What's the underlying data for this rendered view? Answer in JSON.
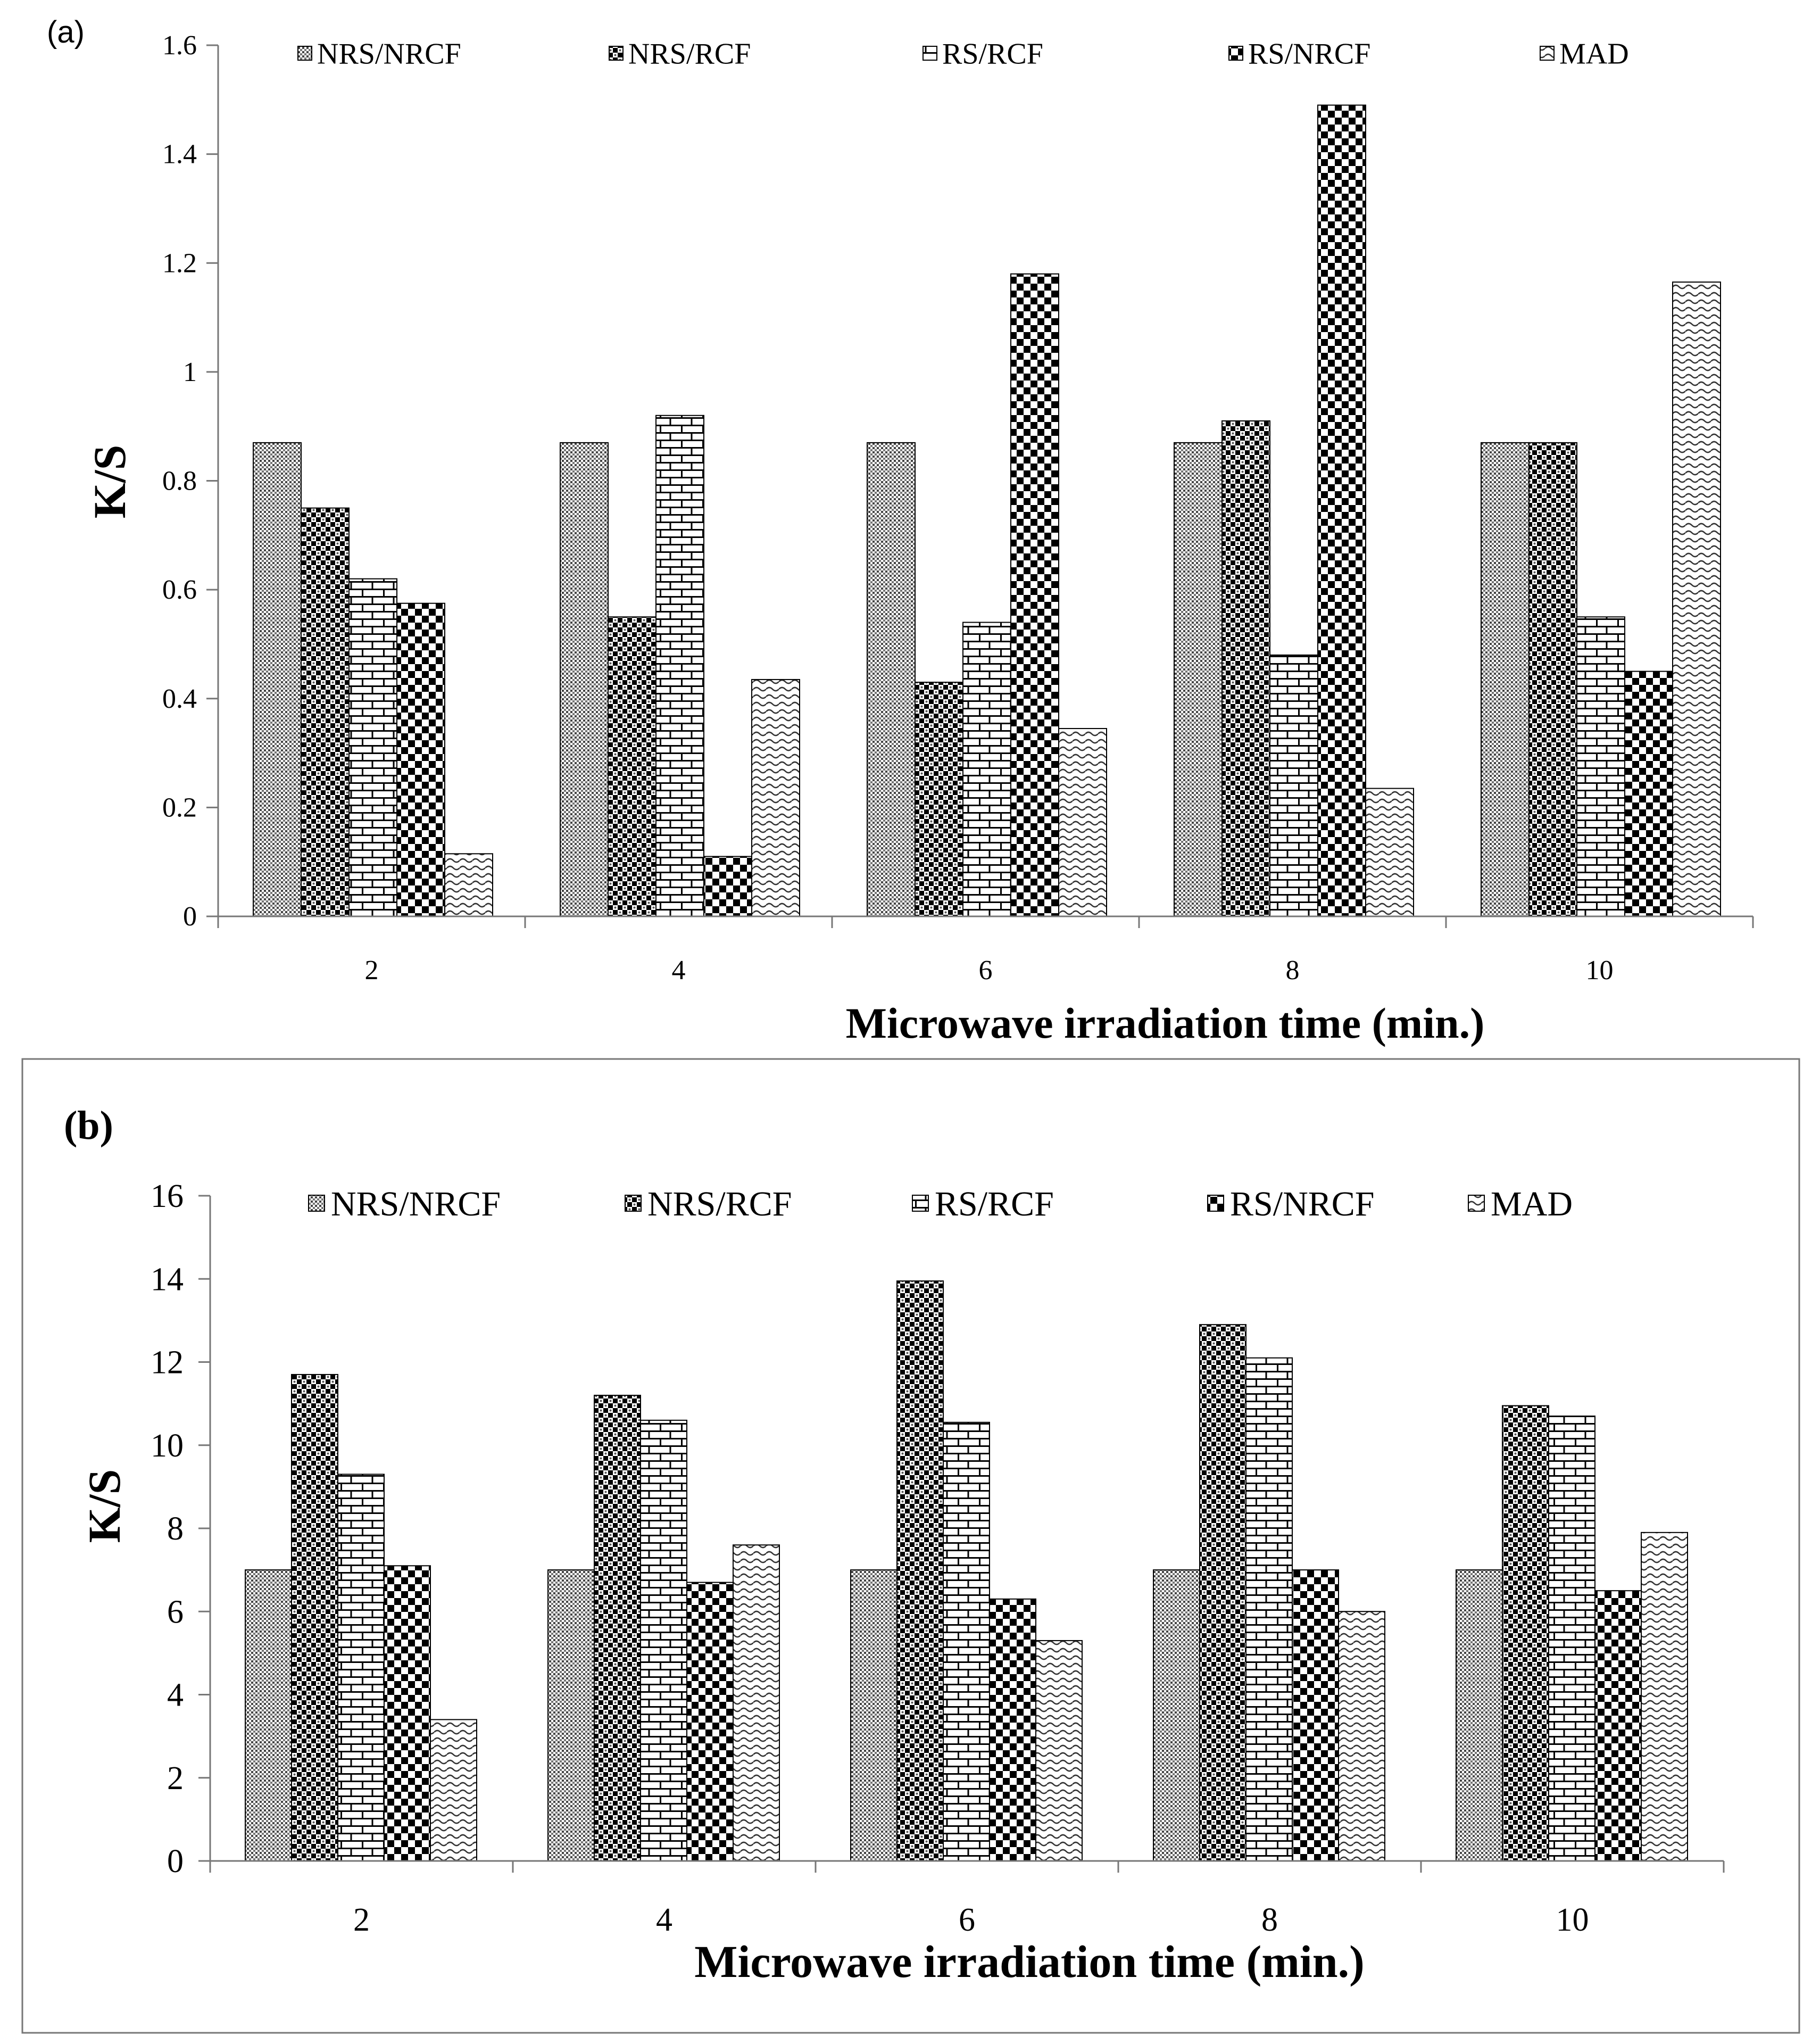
{
  "chart_data": [
    {
      "id": "a",
      "type": "bar",
      "panel_label": "(a)",
      "title": "",
      "xlabel": "Microwave irradiation  time (min.)",
      "ylabel": "K/S",
      "categories": [
        "2",
        "4",
        "6",
        "8",
        "10"
      ],
      "ylim": [
        0,
        1.6
      ],
      "yticks": [
        "0",
        "0.2",
        "0.4",
        "0.6",
        "0.8",
        "1",
        "1.2",
        "1.4",
        "1.6"
      ],
      "legend_position": "top",
      "grid": false,
      "series": [
        {
          "name": "NRS/NRCF",
          "values": [
            0.87,
            0.87,
            0.87,
            0.87,
            0.87
          ]
        },
        {
          "name": "NRS/RCF",
          "values": [
            0.75,
            0.55,
            0.43,
            0.91,
            0.87
          ]
        },
        {
          "name": "RS/RCF",
          "values": [
            0.62,
            0.92,
            0.54,
            0.48,
            0.55
          ]
        },
        {
          "name": "RS/NRCF",
          "values": [
            0.575,
            0.11,
            1.18,
            1.49,
            0.45
          ]
        },
        {
          "name": "MAD",
          "values": [
            0.115,
            0.435,
            0.345,
            0.235,
            1.165
          ]
        }
      ]
    },
    {
      "id": "b",
      "type": "bar",
      "panel_label": "(b)",
      "title": "",
      "xlabel": "Microwave irradiation time (min.)",
      "ylabel": "K/S",
      "categories": [
        "2",
        "4",
        "6",
        "8",
        "10"
      ],
      "ylim": [
        0,
        16
      ],
      "yticks": [
        "0",
        "2",
        "4",
        "6",
        "8",
        "10",
        "12",
        "14",
        "16"
      ],
      "legend_position": "top",
      "grid": false,
      "series": [
        {
          "name": "NRS/NRCF",
          "values": [
            7.0,
            7.0,
            7.0,
            7.0,
            7.0
          ]
        },
        {
          "name": "NRS/RCF",
          "values": [
            11.7,
            11.2,
            13.95,
            12.9,
            10.95
          ]
        },
        {
          "name": "RS/RCF",
          "values": [
            9.3,
            10.6,
            10.55,
            12.1,
            10.7
          ]
        },
        {
          "name": "RS/NRCF",
          "values": [
            7.1,
            6.7,
            6.3,
            7.0,
            6.5
          ]
        },
        {
          "name": "MAD",
          "values": [
            3.4,
            7.6,
            5.3,
            6.0,
            7.9
          ]
        }
      ]
    }
  ]
}
